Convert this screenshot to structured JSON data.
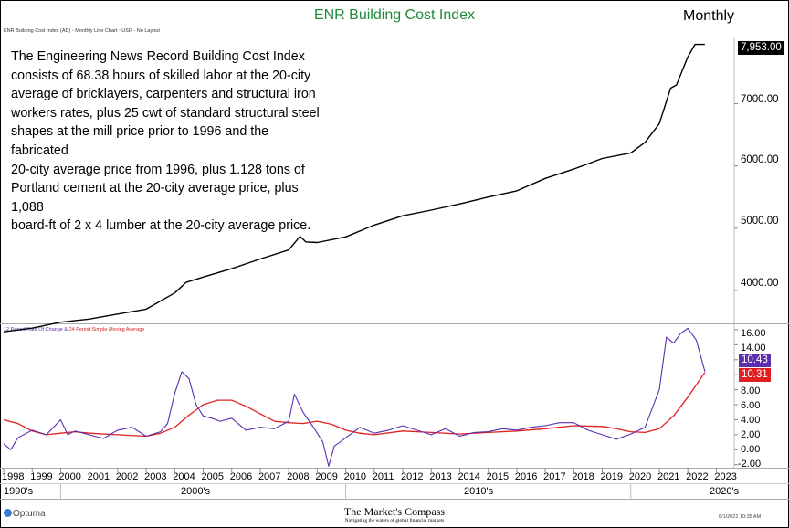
{
  "header": {
    "title": "ENR Building Cost Index",
    "frequency": "Monthly",
    "subtitle": "ENR Building Cost Index (AD) - Monthly Line Chart - USD - No Layout"
  },
  "description_lines": [
    "The Engineering News Record Building Cost Index",
    "consists of 68.38 hours of skilled labor at the 20-city",
    "average of bricklayers, carpenters and structural iron",
    "workers rates, plus 25 cwt of standard structural steel",
    "shapes at the mill price prior to 1996 and the fabricated",
    "20-city average price from 1996, plus 1.128 tons of",
    "Portland cement at the 20-city average price, plus 1,088",
    "board-ft of 2 x 4 lumber at the 20-city average price."
  ],
  "indicator_label": {
    "roc": "12 Period Rate Of Change",
    "amp": " & ",
    "sma": "24 Period Simple Moving Average"
  },
  "colors": {
    "price": "#000000",
    "roc": "#5b2fb0",
    "sma": "#e02020",
    "title": "#1f8a3a"
  },
  "footer": {
    "brand": "The Market's Compass",
    "tagline": "Navigating the waters of global financial markets",
    "optuma": "Optuma",
    "timestamp": "8/1/2022 10:35 AM"
  },
  "chart_data": [
    {
      "type": "line",
      "title": "ENR Building Cost Index",
      "x_range": [
        1998.0,
        2023.5
      ],
      "ylim": [
        3500,
        8050
      ],
      "y_ticks": [
        4000,
        5000,
        6000,
        7000
      ],
      "y_tick_labels": [
        "4000.00",
        "5000.00",
        "6000.00",
        "7000.00"
      ],
      "last_value_label": "7,953.00",
      "series": [
        {
          "x": [
            1998.0,
            1999.0,
            2000.0,
            2001.0,
            2002.0,
            2003.0,
            2004.0,
            2004.4,
            2005.0,
            2006.0,
            2007.0,
            2008.0,
            2008.4,
            2008.6,
            2009.0,
            2010.0,
            2011.0,
            2012.0,
            2013.0,
            2014.0,
            2015.0,
            2016.0,
            2017.0,
            2018.0,
            2019.0,
            2020.0,
            2020.5,
            2021.0,
            2021.4,
            2021.6,
            2022.0,
            2022.25,
            2022.6
          ],
          "y": [
            3335,
            3395,
            3490,
            3540,
            3620,
            3700,
            3960,
            4130,
            4215,
            4350,
            4505,
            4650,
            4870,
            4780,
            4770,
            4860,
            5050,
            5200,
            5290,
            5390,
            5500,
            5600,
            5800,
            5950,
            6120,
            6210,
            6380,
            6680,
            7250,
            7300,
            7750,
            7953,
            7953
          ]
        }
      ]
    },
    {
      "type": "line",
      "x_range": [
        1998.0,
        2023.5
      ],
      "ylim": [
        -2.4,
        16.6
      ],
      "y_ticks": [
        -2,
        0,
        2,
        4,
        6,
        8,
        10,
        12,
        14,
        16
      ],
      "y_tick_labels": [
        "-2.00",
        "0.00",
        "2.00",
        "4.00",
        "6.00",
        "8.00",
        "",
        "",
        "14.00",
        "16.00"
      ],
      "last_value_labels": [
        "10.43",
        "10.31"
      ],
      "series": [
        {
          "name": "12 Period Rate Of Change",
          "x": [
            1998.0,
            1998.25,
            1998.5,
            1999.0,
            1999.5,
            2000.0,
            2000.25,
            2000.5,
            2001.0,
            2001.5,
            2002.0,
            2002.5,
            2003.0,
            2003.5,
            2003.75,
            2004.0,
            2004.25,
            2004.5,
            2004.75,
            2005.0,
            2005.3,
            2005.6,
            2006.0,
            2006.5,
            2007.0,
            2007.5,
            2008.0,
            2008.2,
            2008.5,
            2008.9,
            2009.2,
            2009.4,
            2009.6,
            2009.8,
            2010.0,
            2010.5,
            2011.0,
            2011.5,
            2012.0,
            2012.5,
            2013.0,
            2013.5,
            2014.0,
            2014.5,
            2015.0,
            2015.5,
            2016.0,
            2016.5,
            2017.0,
            2017.5,
            2018.0,
            2018.5,
            2019.0,
            2019.5,
            2020.0,
            2020.5,
            2020.75,
            2021.0,
            2021.25,
            2021.5,
            2021.75,
            2022.0,
            2022.3,
            2022.6
          ],
          "y": [
            0.8,
            0.0,
            1.6,
            2.6,
            2.0,
            4.0,
            2.0,
            2.5,
            2.0,
            1.5,
            2.6,
            3.0,
            1.8,
            2.4,
            3.5,
            7.5,
            10.4,
            9.5,
            6.0,
            4.5,
            4.2,
            3.8,
            4.2,
            2.6,
            3.0,
            2.8,
            3.8,
            7.4,
            5.0,
            2.8,
            1.0,
            -2.2,
            0.5,
            1.0,
            1.6,
            3.0,
            2.2,
            2.6,
            3.2,
            2.6,
            2.0,
            2.8,
            1.8,
            2.3,
            2.4,
            2.8,
            2.6,
            3.0,
            3.2,
            3.6,
            3.6,
            2.6,
            2.0,
            1.4,
            2.1,
            3.0,
            5.5,
            8.0,
            15.0,
            14.2,
            15.5,
            16.2,
            14.6,
            10.43
          ]
        },
        {
          "name": "24 Period Simple Moving Average",
          "x": [
            1998.0,
            1998.5,
            1999.0,
            1999.5,
            2000.0,
            2000.5,
            2001.0,
            2002.0,
            2003.0,
            2003.5,
            2004.0,
            2004.5,
            2005.0,
            2005.5,
            2006.0,
            2006.5,
            2007.0,
            2007.5,
            2008.0,
            2008.5,
            2009.0,
            2009.5,
            2010.0,
            2010.5,
            2011.0,
            2012.0,
            2013.0,
            2014.0,
            2015.0,
            2016.0,
            2017.0,
            2018.0,
            2019.0,
            2019.5,
            2020.0,
            2020.5,
            2021.0,
            2021.5,
            2022.0,
            2022.6
          ],
          "y": [
            4.0,
            3.5,
            2.5,
            2.0,
            2.2,
            2.4,
            2.2,
            2.0,
            1.8,
            2.2,
            3.0,
            4.6,
            6.0,
            6.6,
            6.6,
            5.8,
            4.8,
            3.8,
            3.6,
            3.5,
            3.8,
            3.4,
            2.6,
            2.2,
            2.0,
            2.5,
            2.3,
            2.1,
            2.3,
            2.5,
            2.8,
            3.2,
            3.1,
            2.8,
            2.4,
            2.3,
            2.8,
            4.5,
            7.0,
            10.31
          ]
        }
      ]
    }
  ],
  "x_axis": {
    "years": [
      "1998",
      "1999",
      "2000",
      "2001",
      "2002",
      "2003",
      "2004",
      "2005",
      "2006",
      "2007",
      "2008",
      "2009",
      "2010",
      "2011",
      "2012",
      "2013",
      "2014",
      "2015",
      "2016",
      "2017",
      "2018",
      "2019",
      "2020",
      "2021",
      "2022",
      "2023"
    ],
    "decades": [
      "1990's",
      "2000's",
      "2010's",
      "2020's"
    ]
  }
}
